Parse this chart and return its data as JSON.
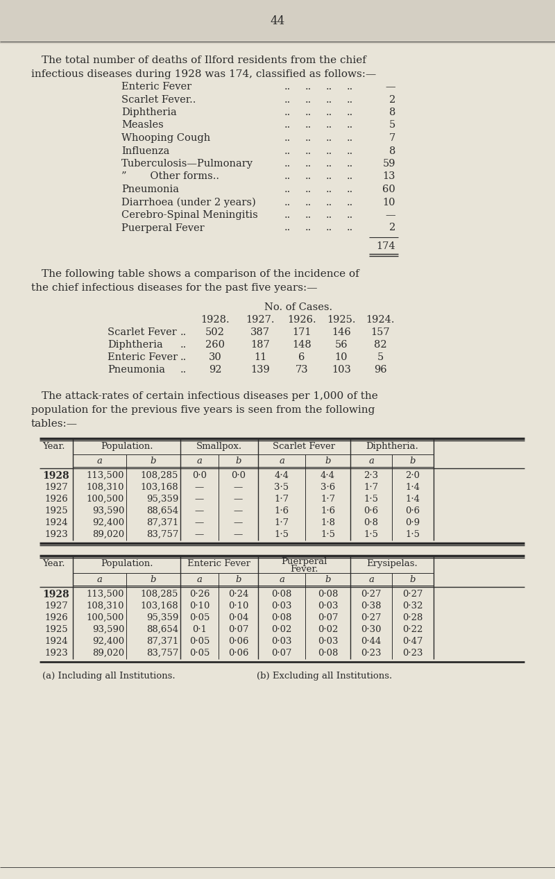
{
  "page_number": "44",
  "bg_color": "#e8e4d8",
  "text_color": "#2a2a2a",
  "intro_line1": "The total number of deaths of Ilford residents from the chief",
  "intro_line2": "infectious diseases during 1928 was 174, classified as follows:—",
  "deaths_list": [
    [
      "Enteric Fever",
      "—"
    ],
    [
      "Scarlet Fever..",
      "2"
    ],
    [
      "Diphtheria",
      "8"
    ],
    [
      "Measles",
      "5"
    ],
    [
      "Whooping Cough",
      "7"
    ],
    [
      "Influenza",
      "8"
    ],
    [
      "Tuberculosis—Pulmonary",
      "59"
    ],
    [
      "”   Other forms..",
      "13"
    ],
    [
      "Pneumonia",
      "60"
    ],
    [
      "Diarrhoea (under 2 years)",
      "10"
    ],
    [
      "Cerebro-Spinal Meningitis",
      "—"
    ],
    [
      "Puerperal Fever",
      "2"
    ]
  ],
  "deaths_total": "174",
  "compare_line1": "The following table shows a comparison of the incidence of",
  "compare_line2": "the chief infectious diseases for the past five years:—",
  "compare_header": "No. of Cases.",
  "compare_years": [
    "1928.",
    "1927.",
    "1926.",
    "1925.",
    "1924."
  ],
  "compare_diseases": [
    {
      "name": "Scarlet Fever",
      "values": [
        "502",
        "387",
        "171",
        "146",
        "157"
      ]
    },
    {
      "name": "Diphtheria",
      "values": [
        "260",
        "187",
        "148",
        "56",
        "82"
      ]
    },
    {
      "name": "Enteric Fever",
      "values": [
        "30",
        "11",
        "6",
        "10",
        "5"
      ]
    },
    {
      "name": "Pneumonia",
      "values": [
        "92",
        "139",
        "73",
        "103",
        "96"
      ]
    }
  ],
  "attack_line1": "The attack-rates of certain infectious diseases per 1,000 of the",
  "attack_line2": "population for the previous five years is seen from the following",
  "attack_line3": "tables:—",
  "t1_col_groups": [
    "Population.",
    "Smallpox.",
    "Scarlet Fever",
    "Diphtheria."
  ],
  "t1_years": [
    "1928",
    "1927",
    "1926",
    "1925",
    "1924",
    "1923"
  ],
  "t1_pop_a": [
    "113,500",
    "108,310",
    "100,500",
    "93,590",
    "92,400",
    "89,020"
  ],
  "t1_pop_b": [
    "108,285",
    "103,168",
    "95,359",
    "88,654",
    "87,371",
    "83,757"
  ],
  "t1_small_a": [
    "0·0",
    "—",
    "—",
    "—",
    "—",
    "—"
  ],
  "t1_small_b": [
    "0·0",
    "—",
    "—",
    "—",
    "—",
    "—"
  ],
  "t1_scarlet_a": [
    "4·4",
    "3·5",
    "1·7",
    "1·6",
    "1·7",
    "1·5"
  ],
  "t1_scarlet_b": [
    "4·4",
    "3·6",
    "1·7",
    "1·6",
    "1·8",
    "1·5"
  ],
  "t1_diph_a": [
    "2·3",
    "1·7",
    "1·5",
    "0·6",
    "0·8",
    "1·5"
  ],
  "t1_diph_b": [
    "2·0",
    "1·4",
    "1·4",
    "0·6",
    "0·9",
    "1·5"
  ],
  "t2_col_groups": [
    "Population.",
    "Enteric Fever",
    "Puerperal\nFever.",
    "Erysipelas."
  ],
  "t2_years": [
    "1928",
    "1927",
    "1926",
    "1925",
    "1924",
    "1923"
  ],
  "t2_pop_a": [
    "113,500",
    "108,310",
    "100,500",
    "93,590",
    "92,400",
    "89,020"
  ],
  "t2_pop_b": [
    "108,285",
    "103,168",
    "95,359",
    "88,654",
    "87,371",
    "83,757"
  ],
  "t2_ent_a": [
    "0·26",
    "0·10",
    "0·05",
    "0·1",
    "0·05",
    "0·05"
  ],
  "t2_ent_b": [
    "0·24",
    "0·10",
    "0·04",
    "0·07",
    "0·06",
    "0·06"
  ],
  "t2_puerp_a": [
    "0·08",
    "0·03",
    "0·08",
    "0·02",
    "0·03",
    "0·07"
  ],
  "t2_puerp_b": [
    "0·08",
    "0·03",
    "0·07",
    "0·02",
    "0·03",
    "0·08"
  ],
  "t2_erys_a": [
    "0·27",
    "0·38",
    "0·27",
    "0·30",
    "0·44",
    "0·23"
  ],
  "t2_erys_b": [
    "0·27",
    "0·32",
    "0·28",
    "0·22",
    "0·47",
    "0·23"
  ],
  "footnote_a": "(a) Including all Institutions.",
  "footnote_b": "(b) Excluding all Institutions."
}
